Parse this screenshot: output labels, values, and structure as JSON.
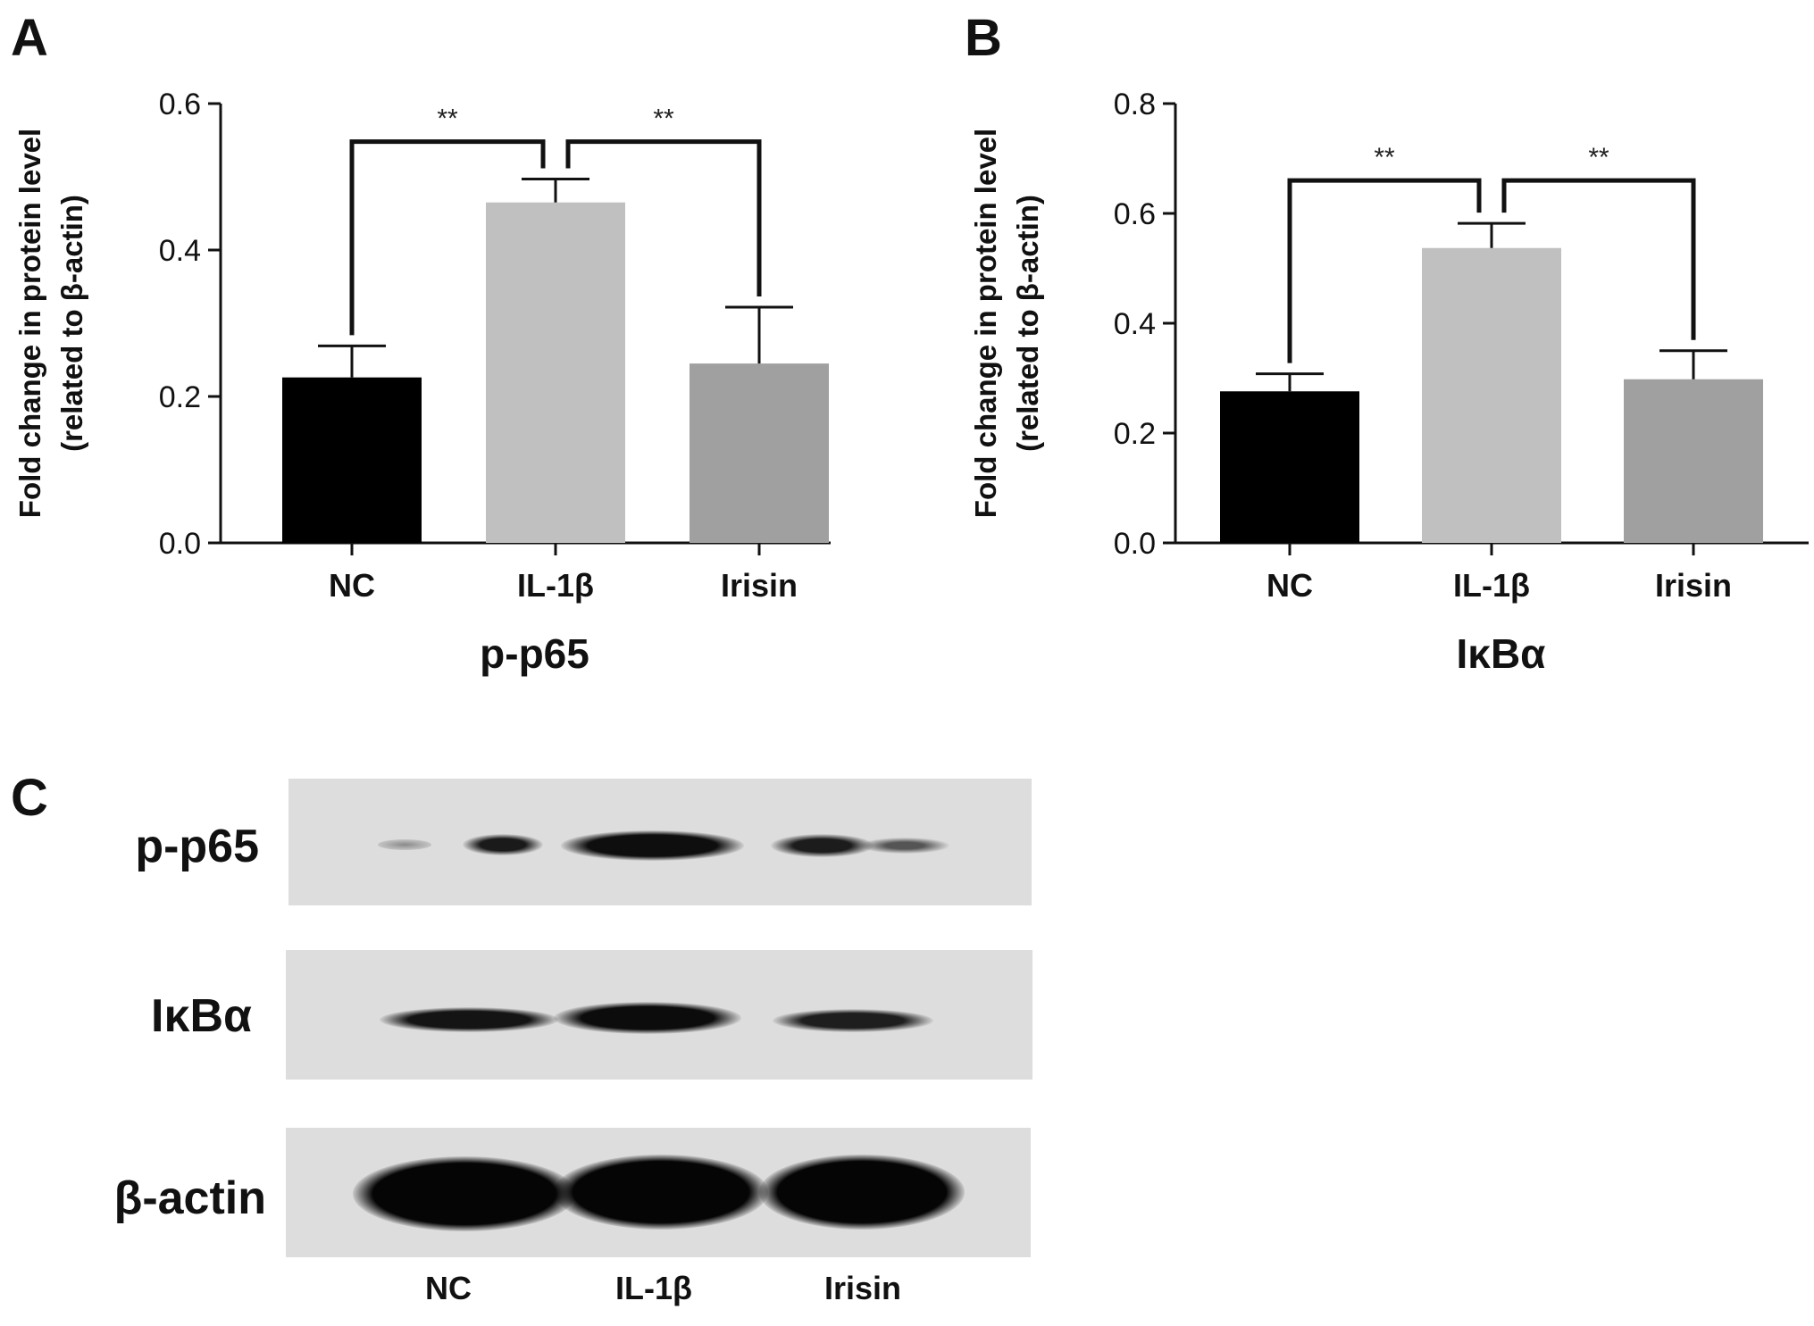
{
  "panels": {
    "a": "A",
    "b": "B",
    "c": "C"
  },
  "chart_data": [
    {
      "type": "bar",
      "title": "p-p65",
      "ylabel_line1": "Fold change in protein level",
      "ylabel_line2": "(related to β-actin)",
      "categories": [
        "NC",
        "IL-1β",
        "Irisin"
      ],
      "values": [
        0.226,
        0.465,
        0.245
      ],
      "errors": [
        0.043,
        0.032,
        0.077
      ],
      "colors": [
        "#000000",
        "#c0c0c0",
        "#a0a0a0"
      ],
      "ylim": [
        0,
        0.6
      ],
      "yticks": [
        "0.0",
        "0.2",
        "0.4",
        "0.6"
      ],
      "ytick_values": [
        0,
        0.2,
        0.4,
        0.6
      ],
      "significance": [
        {
          "from": 0,
          "to": 1,
          "label": "**",
          "y": 0.548
        },
        {
          "from": 1,
          "to": 2,
          "label": "**",
          "y": 0.548
        }
      ]
    },
    {
      "type": "bar",
      "title": "IκBα",
      "ylabel_line1": "Fold change in protein level",
      "ylabel_line2": "(related to β-actin)",
      "categories": [
        "NC",
        "IL-1β",
        "Irisin"
      ],
      "values": [
        0.276,
        0.537,
        0.298
      ],
      "errors": [
        0.032,
        0.045,
        0.052
      ],
      "colors": [
        "#000000",
        "#c0c0c0",
        "#a0a0a0"
      ],
      "ylim": [
        0,
        0.8
      ],
      "yticks": [
        "0.0",
        "0.2",
        "0.4",
        "0.6",
        "0.8"
      ],
      "ytick_values": [
        0,
        0.2,
        0.4,
        0.6,
        0.8
      ],
      "significance": [
        {
          "from": 0,
          "to": 1,
          "label": "**",
          "y": 0.66
        },
        {
          "from": 1,
          "to": 2,
          "label": "**",
          "y": 0.66
        }
      ]
    }
  ],
  "blot": {
    "rows": [
      "p-p65",
      "IκBα",
      "β-actin"
    ],
    "lanes": [
      "NC",
      "IL-1β",
      "Irisin"
    ]
  }
}
